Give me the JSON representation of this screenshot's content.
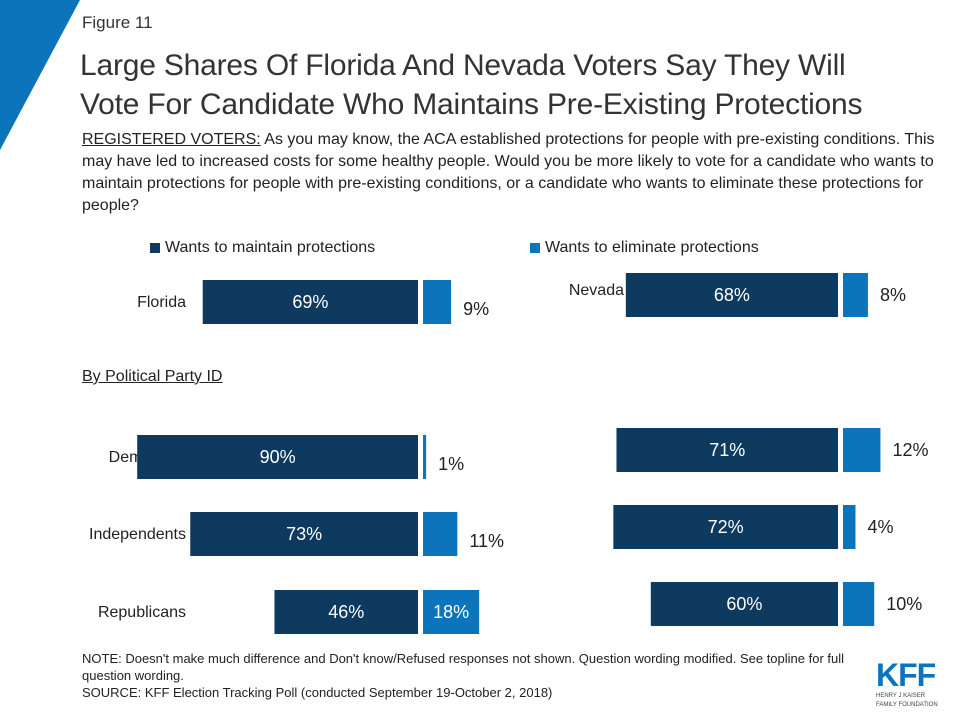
{
  "figure_label": "Figure 11",
  "title_line1": "Large Shares Of Florida And Nevada Voters Say They Will",
  "title_line2": "Vote For Candidate Who Maintains Pre-Existing Protections",
  "subtitle_lead": "REGISTERED VOTERS:",
  "subtitle_body": " As you may know, the ACA established protections for people with pre-existing conditions. This may have led to increased costs for some healthy people. Would you be more likely to vote for a candidate who wants to maintain protections for people with pre-existing conditions, or a candidate who wants to eliminate these protections for people?",
  "party_heading": "By Political Party ID",
  "note_line1": "NOTE: Doesn't make much difference and Don't know/Refused responses not shown. Question wording modified. See topline for full question wording.",
  "note_line2": "SOURCE: KFF Election Tracking Poll (conducted September 19-October 2, 2018)",
  "logo": {
    "text": "KFF",
    "sub1": "HENRY J KAISER",
    "sub2": "FAMILY FOUNDATION"
  },
  "colors": {
    "maintain": "#0d3a5e",
    "eliminate": "#0c74ba",
    "accent": "#0c74ba"
  },
  "chart_data": {
    "type": "bar",
    "orientation": "horizontal",
    "legend": [
      "Wants to maintain protections",
      "Wants to eliminate protections"
    ],
    "legend_position": "top",
    "panels": [
      {
        "state": "Florida",
        "rows": [
          {
            "category": "Florida",
            "maintain": 69,
            "maintain_label": "69%",
            "eliminate": 9,
            "eliminate_label": "9%"
          },
          {
            "category": "Democrats",
            "maintain": 90,
            "maintain_label": "90%",
            "eliminate": 1,
            "eliminate_label": "1%"
          },
          {
            "category": "Independents",
            "maintain": 73,
            "maintain_label": "73%",
            "eliminate": 11,
            "eliminate_label": "11%"
          },
          {
            "category": "Republicans",
            "maintain": 46,
            "maintain_label": "46%",
            "eliminate": 18,
            "eliminate_label": "18%"
          }
        ]
      },
      {
        "state": "Nevada",
        "rows": [
          {
            "category": "Nevada",
            "maintain": 68,
            "maintain_label": "68%",
            "eliminate": 8,
            "eliminate_label": "8%"
          },
          {
            "category": "",
            "maintain": 71,
            "maintain_label": "71%",
            "eliminate": 12,
            "eliminate_label": "12%"
          },
          {
            "category": "",
            "maintain": 72,
            "maintain_label": "72%",
            "eliminate": 4,
            "eliminate_label": "4%"
          },
          {
            "category": "",
            "maintain": 60,
            "maintain_label": "60%",
            "eliminate": 10,
            "eliminate_label": "10%"
          }
        ]
      }
    ]
  }
}
